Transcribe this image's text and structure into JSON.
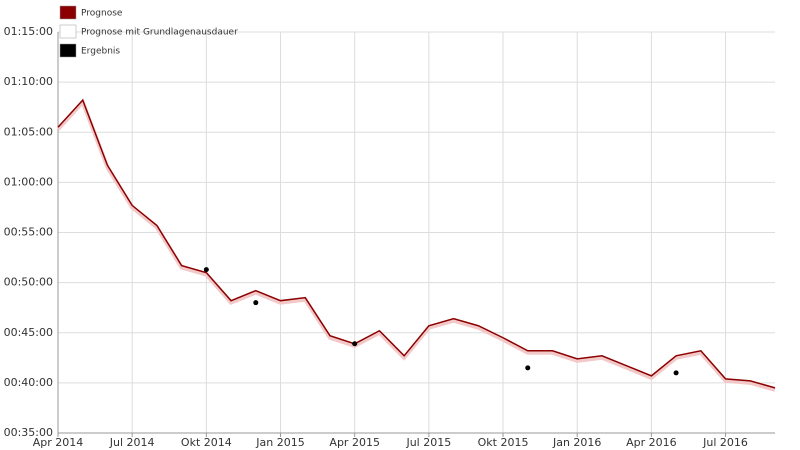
{
  "chart_data": {
    "type": "line",
    "series": [
      {
        "name": "Prognose",
        "color": "#8b0000",
        "type": "line",
        "x": [
          "2014-04",
          "2014-05",
          "2014-06",
          "2014-07",
          "2014-08",
          "2014-09",
          "2014-10",
          "2014-11",
          "2014-12",
          "2015-01",
          "2015-02",
          "2015-03",
          "2015-04",
          "2015-05",
          "2015-06",
          "2015-07",
          "2015-08",
          "2015-09",
          "2015-10",
          "2015-11",
          "2015-12",
          "2016-01",
          "2016-02",
          "2016-03",
          "2016-04",
          "2016-05",
          "2016-06",
          "2016-07",
          "2016-08",
          "2016-09"
        ],
        "values": [
          65.5,
          68.2,
          61.7,
          57.7,
          55.7,
          51.7,
          51.0,
          48.2,
          49.2,
          48.2,
          48.5,
          44.7,
          43.9,
          45.2,
          42.7,
          45.7,
          46.4,
          45.7,
          44.5,
          43.2,
          43.2,
          42.4,
          42.7,
          41.7,
          40.7,
          42.7,
          43.2,
          40.4,
          40.2,
          39.5
        ]
      },
      {
        "name": "Prognose mit Grundlagenausdauer",
        "color": "#ffffff",
        "type": "line",
        "x": [],
        "values": []
      },
      {
        "name": "Ergebnis",
        "color": "#000000",
        "type": "scatter",
        "x": [
          "2014-10",
          "2014-12",
          "2015-04",
          "2015-11",
          "2016-05"
        ],
        "values": [
          51.3,
          48.0,
          43.9,
          41.5,
          41.0
        ]
      }
    ],
    "xlim": [
      "2014-04",
      "2016-09"
    ],
    "xticks": [
      {
        "value": "2014-04",
        "label": "Apr 2014"
      },
      {
        "value": "2014-07",
        "label": "Jul 2014"
      },
      {
        "value": "2014-10",
        "label": "Okt 2014"
      },
      {
        "value": "2015-01",
        "label": "Jan 2015"
      },
      {
        "value": "2015-04",
        "label": "Apr 2015"
      },
      {
        "value": "2015-07",
        "label": "Jul 2015"
      },
      {
        "value": "2015-10",
        "label": "Okt 2015"
      },
      {
        "value": "2016-01",
        "label": "Jan 2016"
      },
      {
        "value": "2016-04",
        "label": "Apr 2016"
      },
      {
        "value": "2016-07",
        "label": "Jul 2016"
      }
    ],
    "ylim": [
      35,
      75
    ],
    "yticks": [
      {
        "value": 35,
        "label": "00:35:00"
      },
      {
        "value": 40,
        "label": "00:40:00"
      },
      {
        "value": 45,
        "label": "00:45:00"
      },
      {
        "value": 50,
        "label": "00:50:00"
      },
      {
        "value": 55,
        "label": "00:55:00"
      },
      {
        "value": 60,
        "label": "01:00:00"
      },
      {
        "value": 65,
        "label": "01:05:00"
      },
      {
        "value": 70,
        "label": "01:10:00"
      },
      {
        "value": 75,
        "label": "01:15:00"
      }
    ],
    "grid": true
  }
}
